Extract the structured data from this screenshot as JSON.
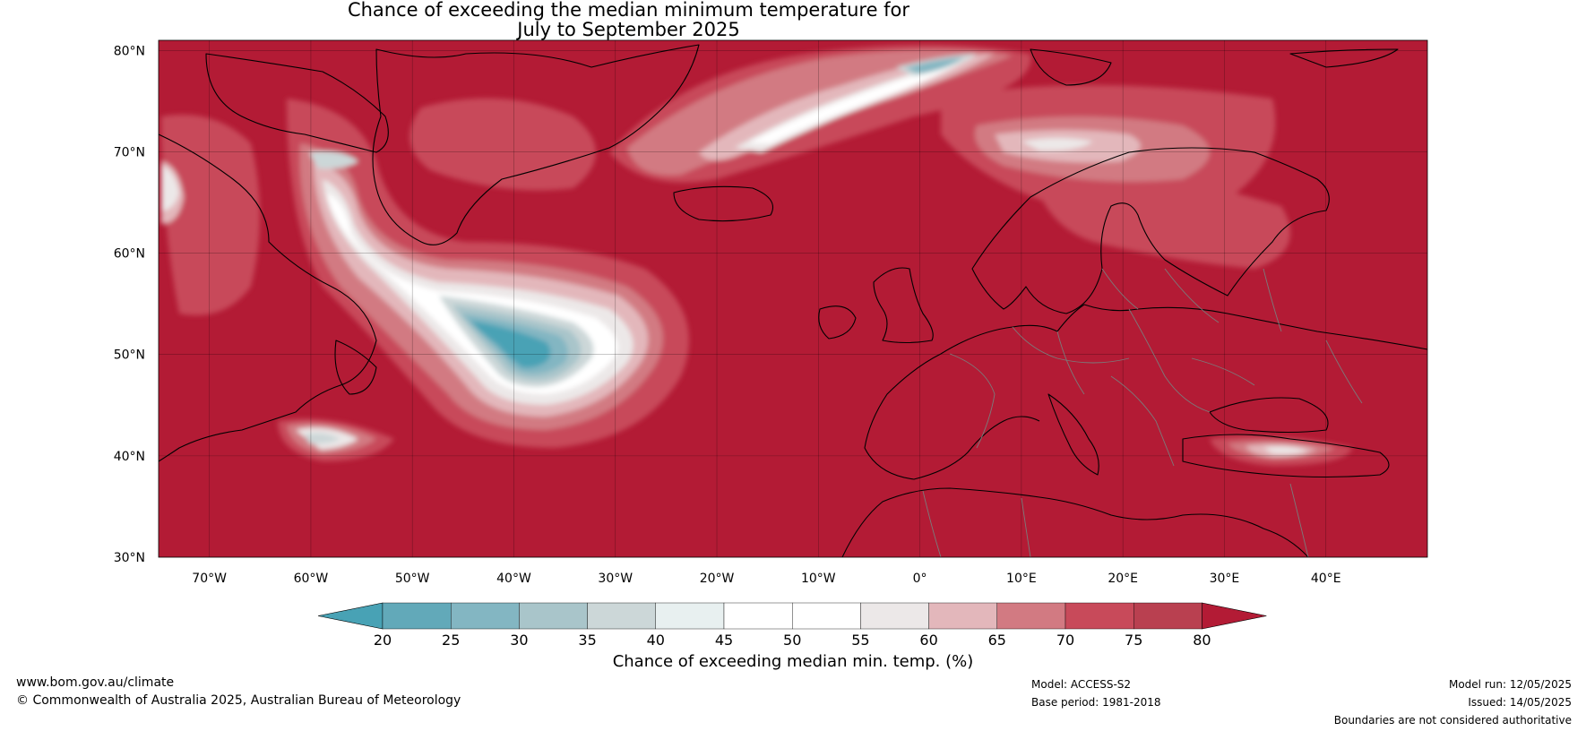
{
  "title_line1": "Chance of exceeding the median minimum temperature for",
  "title_line2": "July to September 2025",
  "map": {
    "lat_ticks": [
      "80°N",
      "70°N",
      "60°N",
      "50°N",
      "40°N",
      "30°N"
    ],
    "lon_ticks": [
      "70°W",
      "60°W",
      "50°W",
      "40°W",
      "30°W",
      "20°W",
      "10°W",
      "0°",
      "10°E",
      "20°E",
      "30°E",
      "40°E"
    ],
    "colors": {
      "base": "#b31b35",
      "band75": "#c84a5a",
      "band70": "#d27a82",
      "band65": "#e3b7bb",
      "band55": "#ece8e8",
      "band45": "#ffffff",
      "band40": "#e8f0f0",
      "band35": "#ccd7d8",
      "band30": "#a9c5ca",
      "band25": "#83b6c2",
      "band20": "#62a9b9",
      "below20": "#48a2b5",
      "coast": "#000000",
      "border": "#7b7b7b"
    }
  },
  "legend": {
    "labels": [
      "20",
      "25",
      "30",
      "35",
      "40",
      "45",
      "50",
      "55",
      "60",
      "65",
      "70",
      "75",
      "80"
    ],
    "colors": [
      "#62a9b9",
      "#83b6c2",
      "#a9c5ca",
      "#ccd7d8",
      "#e8f0f0",
      "#ffffff",
      "#ffffff",
      "#ece8e8",
      "#e3b7bb",
      "#d27a82",
      "#c84a5a",
      "#b94050"
    ],
    "low_color": "#48a2b5",
    "high_color": "#b31b35",
    "title": "Chance of exceeding median min. temp. (%)"
  },
  "footer": {
    "website": "www.bom.gov.au/climate",
    "copyright": "© Commonwealth of Australia 2025, Australian Bureau of Meteorology",
    "model": "Model: ACCESS-S2",
    "base_period": "Base period: 1981-2018",
    "model_run": "Model run: 12/05/2025",
    "issued": "Issued: 14/05/2025",
    "disclaimer": "Boundaries are not considered authoritative"
  }
}
